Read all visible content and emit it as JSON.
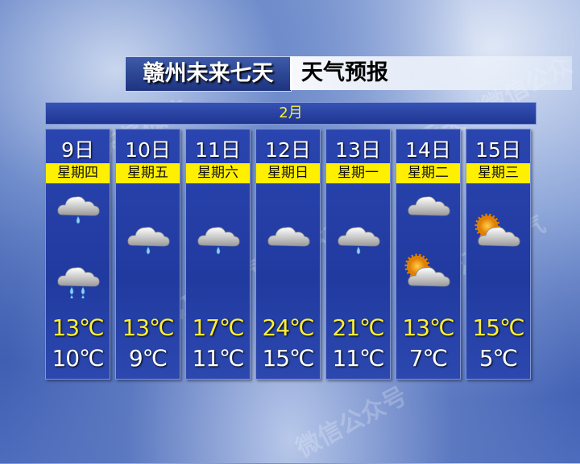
{
  "header": {
    "title": "赣州未来七天",
    "subtitle": "天气预报"
  },
  "month": "2月",
  "watermark": "江西天气微信公众号",
  "colors": {
    "high_temp": "#ffef33",
    "weekday_bar": "#ffef00",
    "panel": "#203aa0"
  },
  "days": [
    {
      "date": "9日",
      "weekday": "星期四",
      "high": "13℃",
      "low": "10℃",
      "icons": [
        "light-rain-icon",
        "moderate-rain-icon"
      ]
    },
    {
      "date": "10日",
      "weekday": "星期五",
      "high": "13℃",
      "low": "9℃",
      "icons": [
        "light-rain-icon"
      ]
    },
    {
      "date": "11日",
      "weekday": "星期六",
      "high": "17℃",
      "low": "11℃",
      "icons": [
        "light-rain-icon"
      ]
    },
    {
      "date": "12日",
      "weekday": "星期日",
      "high": "24℃",
      "low": "15℃",
      "icons": [
        "cloudy-icon"
      ]
    },
    {
      "date": "13日",
      "weekday": "星期一",
      "high": "21℃",
      "low": "11℃",
      "icons": [
        "light-rain-icon"
      ]
    },
    {
      "date": "14日",
      "weekday": "星期二",
      "high": "13℃",
      "low": "7℃",
      "icons": [
        "cloudy-icon",
        "partly-cloudy-icon"
      ]
    },
    {
      "date": "15日",
      "weekday": "星期三",
      "high": "15℃",
      "low": "5℃",
      "icons": [
        "partly-cloudy-icon"
      ]
    }
  ]
}
